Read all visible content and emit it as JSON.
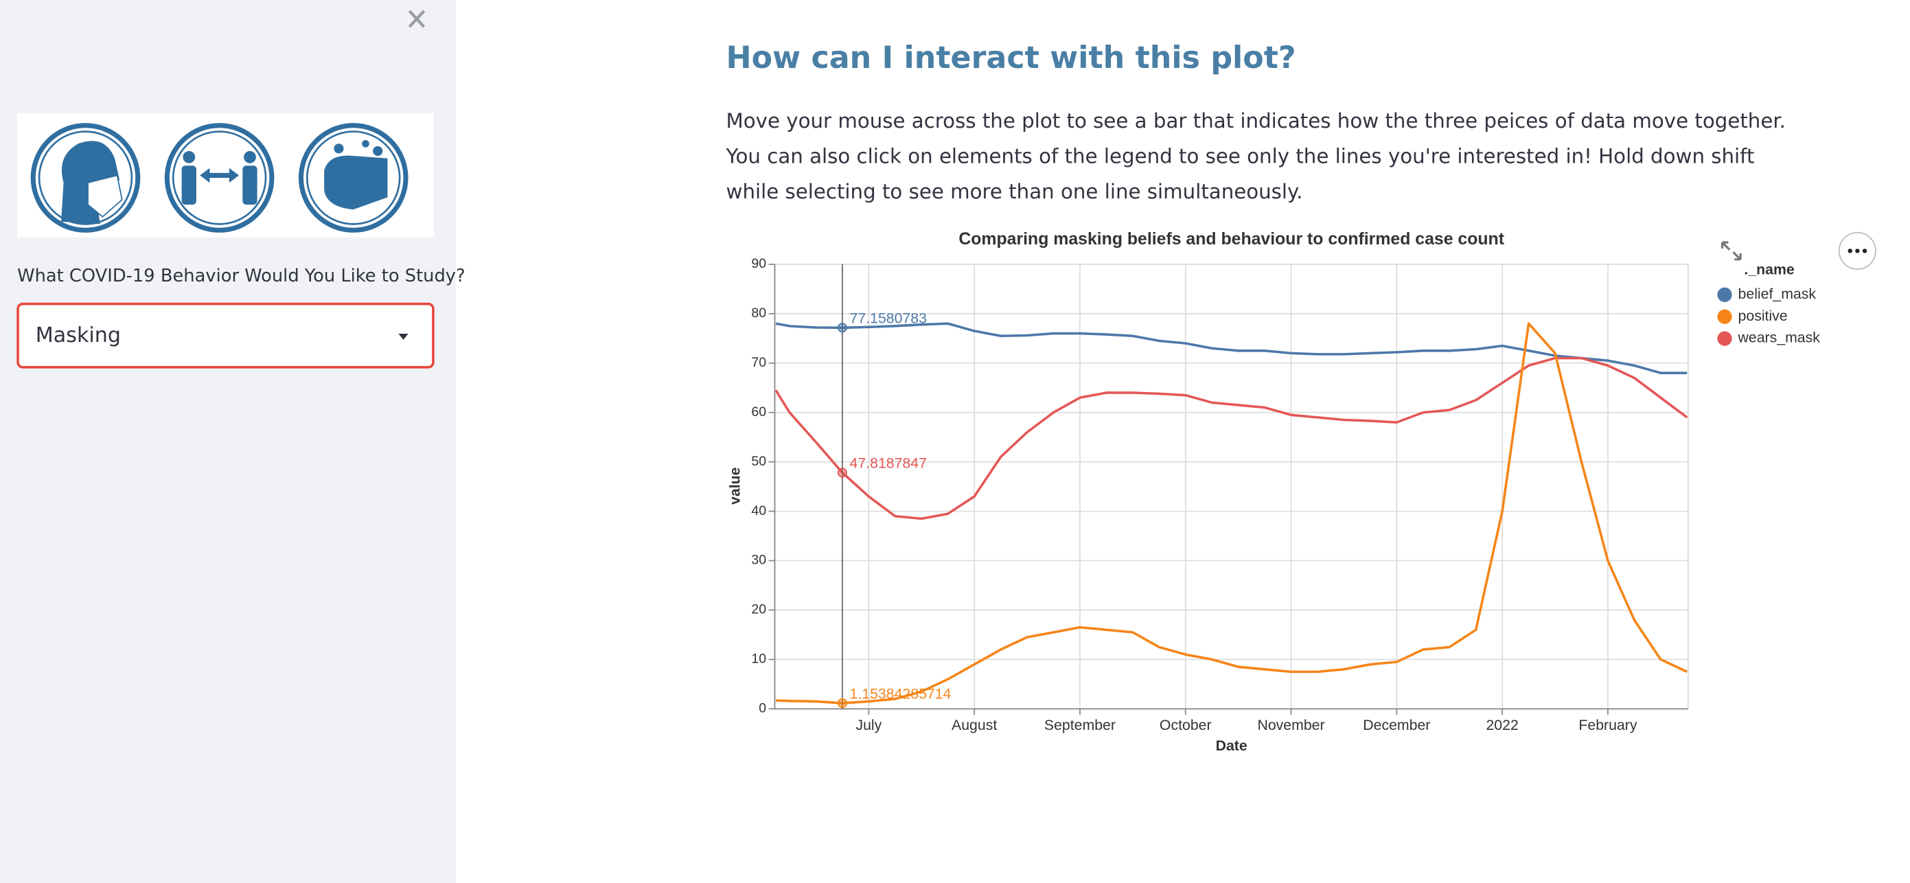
{
  "sidebar": {
    "question": "What COVID-19 Behavior Would You Like to Study?",
    "selected": "Masking"
  },
  "main": {
    "heading": "How can I interact with this plot?",
    "paragraph": [
      "Move your mouse across the plot to see a bar that indicates how the three peices of data move together.",
      "You can also click on elements of the legend to see only the lines you're interested in! Hold down shift",
      "while selecting to see more than one line simultaneously."
    ]
  },
  "chart_data": {
    "type": "line",
    "title": "Comparing masking beliefs and behaviour to confirmed case count",
    "x_label": "Date",
    "y_label": "value",
    "legend_title": "._name",
    "legend_position": "right",
    "grid": true,
    "x": [
      6.12,
      6.25,
      6.5,
      6.75,
      7,
      7.25,
      7.5,
      7.75,
      8,
      8.25,
      8.5,
      8.75,
      9,
      9.25,
      9.5,
      9.75,
      10,
      10.25,
      10.5,
      10.75,
      11,
      11.25,
      11.5,
      11.75,
      12,
      12.25,
      12.5,
      12.75,
      13,
      13.25,
      13.5,
      13.75,
      14,
      14.25,
      14.5,
      14.75
    ],
    "xlim": [
      6.11,
      14.76
    ],
    "xticks": [
      {
        "value": 7,
        "label": "July"
      },
      {
        "value": 8,
        "label": "August"
      },
      {
        "value": 9,
        "label": "September"
      },
      {
        "value": 10,
        "label": "October"
      },
      {
        "value": 11,
        "label": "November"
      },
      {
        "value": 12,
        "label": "December"
      },
      {
        "value": 13,
        "label": "2022"
      },
      {
        "value": 14,
        "label": "February"
      }
    ],
    "ylim": [
      0,
      90
    ],
    "yticks": [
      0,
      10,
      20,
      30,
      40,
      50,
      60,
      70,
      80,
      90
    ],
    "hover_x": 6.75,
    "annotations": [
      "77.1580783",
      "47.8187847",
      "1.15384285714"
    ],
    "series": [
      {
        "name": "belief_mask",
        "color": "#4c78a8",
        "values": [
          78,
          77.5,
          77.2,
          77.1580783,
          77.3,
          77.5,
          77.8,
          78,
          76.5,
          75.5,
          75.6,
          76,
          76,
          75.8,
          75.5,
          74.5,
          74,
          73,
          72.5,
          72.5,
          72,
          71.8,
          71.8,
          72,
          72.2,
          72.5,
          72.5,
          72.8,
          73.5,
          72.5,
          71.5,
          71,
          70.5,
          69.5,
          68,
          68
        ]
      },
      {
        "name": "wears_mask",
        "color": "#e45756",
        "values": [
          64.5,
          60,
          54,
          47.8187847,
          43,
          39,
          38.5,
          39.5,
          43,
          51,
          56,
          60,
          63,
          64,
          64,
          63.8,
          63.5,
          62,
          61.5,
          61,
          59.5,
          59,
          58.5,
          58.3,
          58,
          60,
          60.5,
          62.5,
          66,
          69.5,
          71,
          71,
          69.5,
          67,
          63,
          59
        ]
      },
      {
        "name": "positive",
        "color": "#f58518",
        "values": [
          1.7,
          1.6,
          1.5,
          1.15384285714,
          1.5,
          2,
          3.5,
          6,
          9,
          12,
          14.5,
          15.5,
          16.5,
          16,
          15.5,
          12.5,
          11,
          10,
          8.5,
          8,
          7.5,
          7.5,
          8,
          9,
          9.5,
          12,
          12.5,
          16,
          40,
          78,
          72,
          50,
          30,
          18,
          10,
          7.5
        ]
      }
    ],
    "legend_order": [
      0,
      2,
      1
    ]
  }
}
